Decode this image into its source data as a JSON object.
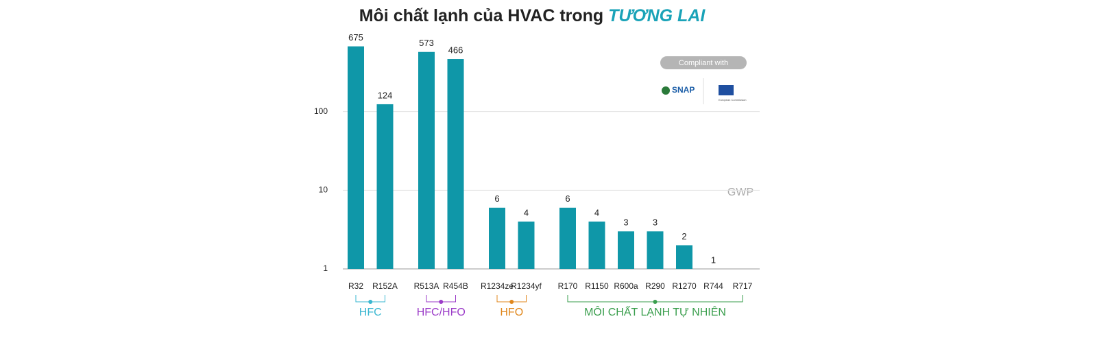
{
  "chart_data": {
    "type": "bar",
    "title": "Môi chất lạnh của HVAC trong",
    "title_highlight": "TƯƠNG LAI",
    "y_label": "GWP",
    "log_scale": true,
    "ylim": [
      1,
      1000
    ],
    "yticks": [
      1,
      10,
      100
    ],
    "grid": true,
    "color": "#0f97a8",
    "groups": [
      {
        "name": "HFC",
        "color": "#3ab7d1",
        "categories": [
          "R32",
          "R152A"
        ],
        "values": [
          675,
          124
        ]
      },
      {
        "name": "HFC/HFO",
        "color": "#9b3bc8",
        "categories": [
          "R513A",
          "R454B"
        ],
        "values": [
          573,
          466
        ]
      },
      {
        "name": "HFO",
        "color": "#e0871c",
        "categories": [
          "R1234ze",
          "R1234yf"
        ],
        "values": [
          6,
          4
        ]
      },
      {
        "name": "MÔI CHẤT LẠNH TỰ NHIÊN",
        "color": "#3a9e4d",
        "categories": [
          "R170",
          "R1150",
          "R600a",
          "R290",
          "R1270",
          "R744",
          "R717"
        ],
        "values": [
          6,
          4,
          3,
          3,
          2,
          1,
          null
        ]
      }
    ],
    "badge": {
      "heading": "Compliant with",
      "logos": [
        "SNAP",
        "European Commission"
      ]
    }
  }
}
